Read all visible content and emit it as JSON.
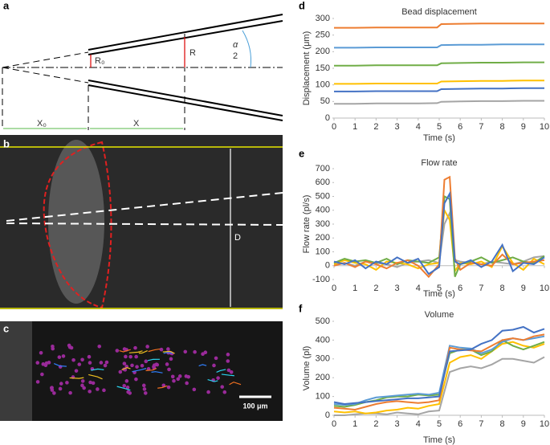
{
  "panels": {
    "a": {
      "label": "a",
      "r0": "R₀",
      "r": "R",
      "alpha_num": "α",
      "alpha_den": "2",
      "x0": "X₀",
      "x": "X"
    },
    "b": {
      "label": "b",
      "d": "D"
    },
    "c": {
      "label": "c",
      "scale": "100 μm"
    }
  },
  "chart_data": [
    {
      "type": "line",
      "panel_label": "d",
      "title": "Bead displacement",
      "xlabel": "Time (s)",
      "ylabel": "Displacement (μm)",
      "x": [
        0,
        1,
        2,
        3,
        4,
        4.9,
        5.1,
        6,
        7,
        8,
        9,
        10
      ],
      "xlim": [
        0,
        10
      ],
      "xticks": [
        0,
        1,
        2,
        3,
        4,
        5,
        6,
        7,
        8,
        9,
        10
      ],
      "ylim": [
        0,
        300
      ],
      "yticks": [
        0,
        50,
        100,
        150,
        200,
        250,
        300
      ],
      "grid": false,
      "series": [
        {
          "color": "#ed7d31",
          "values": [
            272,
            272,
            273,
            273,
            273,
            273,
            283,
            284,
            285,
            285,
            285,
            285
          ]
        },
        {
          "color": "#5b9bd5",
          "values": [
            212,
            212,
            213,
            213,
            213,
            213,
            220,
            221,
            221,
            222,
            222,
            222
          ]
        },
        {
          "color": "#70ad47",
          "values": [
            158,
            158,
            159,
            159,
            159,
            159,
            165,
            166,
            167,
            167,
            168,
            168
          ]
        },
        {
          "color": "#ffc000",
          "values": [
            103,
            103,
            104,
            104,
            104,
            104,
            110,
            111,
            112,
            112,
            113,
            113
          ]
        },
        {
          "color": "#4472c4",
          "values": [
            80,
            80,
            81,
            81,
            81,
            81,
            87,
            88,
            89,
            89,
            90,
            90
          ]
        },
        {
          "color": "#a5a5a5",
          "values": [
            43,
            43,
            44,
            44,
            44,
            45,
            49,
            50,
            51,
            51,
            52,
            52
          ]
        }
      ]
    },
    {
      "type": "line",
      "panel_label": "e",
      "title": "Flow rate",
      "xlabel": "Time (s)",
      "ylabel": "Flow rate  (pl/s)",
      "x": [
        0,
        0.5,
        1,
        1.5,
        2,
        2.5,
        3,
        3.5,
        4,
        4.5,
        5,
        5.25,
        5.5,
        5.75,
        6,
        6.5,
        7,
        7.5,
        8,
        8.5,
        9,
        9.5,
        10
      ],
      "xlim": [
        0,
        10
      ],
      "xticks": [
        0,
        1,
        2,
        3,
        4,
        5,
        6,
        7,
        8,
        9,
        10
      ],
      "ylim": [
        -100,
        700
      ],
      "yticks": [
        -100,
        0,
        100,
        200,
        300,
        400,
        500,
        600,
        700
      ],
      "grid": false,
      "series": [
        {
          "color": "#a5a5a5",
          "values": [
            10,
            20,
            0,
            30,
            20,
            10,
            -10,
            20,
            30,
            40,
            20,
            300,
            380,
            40,
            30,
            20,
            10,
            30,
            20,
            10,
            30,
            60,
            70
          ]
        },
        {
          "color": "#ffc000",
          "values": [
            10,
            40,
            20,
            10,
            -30,
            30,
            20,
            10,
            -20,
            10,
            20,
            400,
            330,
            -40,
            20,
            10,
            30,
            -10,
            140,
            20,
            -30,
            50,
            10
          ]
        },
        {
          "color": "#70ad47",
          "values": [
            20,
            50,
            30,
            40,
            20,
            50,
            10,
            40,
            30,
            20,
            60,
            500,
            480,
            -80,
            10,
            30,
            60,
            20,
            40,
            60,
            30,
            20,
            70
          ]
        },
        {
          "color": "#ed7d31",
          "values": [
            0,
            20,
            -10,
            30,
            10,
            -20,
            20,
            40,
            0,
            -80,
            10,
            620,
            640,
            50,
            -30,
            20,
            10,
            0,
            80,
            10,
            20,
            30,
            40
          ]
        },
        {
          "color": "#4472c4",
          "values": [
            30,
            10,
            40,
            -20,
            30,
            10,
            60,
            20,
            50,
            -60,
            -10,
            450,
            520,
            30,
            10,
            40,
            -10,
            30,
            150,
            -40,
            20,
            10,
            60
          ]
        }
      ]
    },
    {
      "type": "line",
      "panel_label": "f",
      "title": "Volume",
      "xlabel": "Time (s)",
      "ylabel": "Volume (pl)",
      "x": [
        0,
        0.5,
        1,
        1.5,
        2,
        2.5,
        3,
        3.5,
        4,
        4.5,
        5,
        5.5,
        6,
        6.5,
        7,
        7.5,
        8,
        8.5,
        9,
        9.5,
        10
      ],
      "xlim": [
        0,
        10
      ],
      "xticks": [
        0,
        1,
        2,
        3,
        4,
        5,
        6,
        7,
        8,
        9,
        10
      ],
      "ylim": [
        0,
        500
      ],
      "yticks": [
        0,
        100,
        200,
        300,
        400,
        500
      ],
      "grid": false,
      "series": [
        {
          "color": "#a5a5a5",
          "values": [
            0,
            0,
            5,
            10,
            10,
            5,
            15,
            10,
            5,
            20,
            25,
            230,
            250,
            260,
            250,
            270,
            300,
            300,
            290,
            280,
            310
          ]
        },
        {
          "color": "#ffc000",
          "values": [
            20,
            15,
            20,
            10,
            15,
            25,
            30,
            40,
            35,
            50,
            60,
            280,
            310,
            320,
            300,
            340,
            380,
            390,
            370,
            360,
            380
          ]
        },
        {
          "color": "#70ad47",
          "values": [
            50,
            45,
            55,
            70,
            80,
            95,
            100,
            100,
            110,
            105,
            110,
            330,
            350,
            350,
            320,
            340,
            400,
            370,
            350,
            370,
            390
          ]
        },
        {
          "color": "#5b9bd5",
          "values": [
            60,
            55,
            60,
            80,
            95,
            100,
            105,
            110,
            115,
            110,
            120,
            370,
            360,
            355,
            330,
            350,
            390,
            410,
            400,
            410,
            420
          ]
        },
        {
          "color": "#ed7d31",
          "values": [
            40,
            35,
            30,
            45,
            60,
            70,
            75,
            70,
            65,
            70,
            80,
            360,
            350,
            345,
            340,
            370,
            400,
            410,
            400,
            420,
            430
          ]
        },
        {
          "color": "#4472c4",
          "values": [
            70,
            60,
            65,
            70,
            75,
            80,
            85,
            90,
            90,
            95,
            100,
            340,
            345,
            350,
            380,
            400,
            450,
            455,
            470,
            440,
            460
          ]
        }
      ]
    }
  ]
}
